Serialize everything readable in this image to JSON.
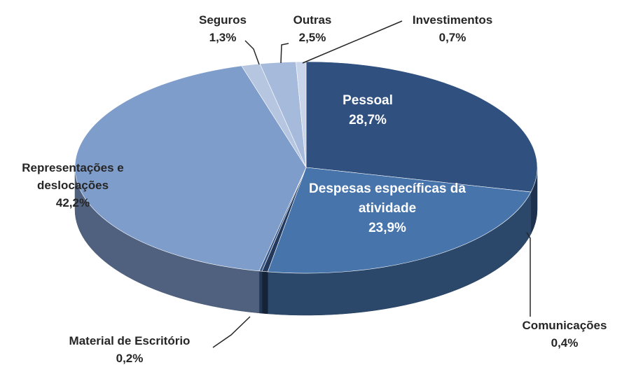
{
  "chart_data": {
    "type": "pie3d",
    "categories": [
      "Pessoal",
      "Despesas específicas da atividade",
      "Comunicações",
      "Material de Escritório",
      "Representações e deslocações",
      "Seguros",
      "Outras",
      "Investimentos"
    ],
    "values": [
      28.7,
      23.9,
      0.4,
      0.2,
      42.2,
      1.3,
      2.5,
      0.7
    ],
    "value_labels": [
      "28,7%",
      "23,9%",
      "0,4%",
      "0,2%",
      "42,2%",
      "1,3%",
      "2,5%",
      "0,7%"
    ],
    "colors": [
      "#30507f",
      "#4674ab",
      "#22385c",
      "#3a5a8a",
      "#7f9dcb",
      "#b6c6e0",
      "#a6badb",
      "#c9d5ea"
    ]
  }
}
